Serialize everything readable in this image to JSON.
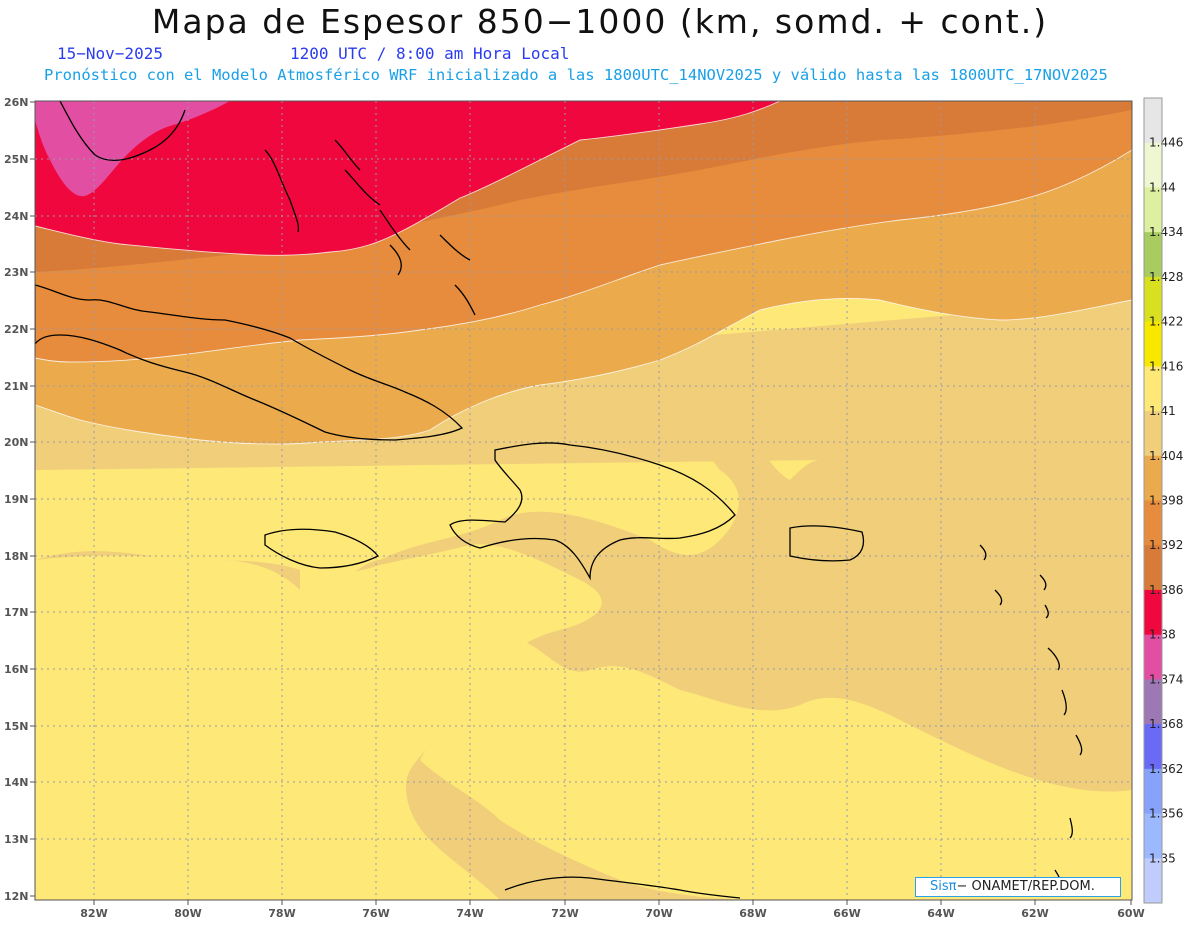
{
  "header": {
    "title": "Mapa de Espesor 850−1000 (km, somd. + cont.)",
    "date": "15−Nov−2025",
    "valid_time": "1200 UTC / 8:00 am Hora Local",
    "forecast_info": "Pronóstico con el Modelo Atmosférico WRF inicializado a las 1800UTC_14NOV2025 y válido hasta las  1800UTC_17NOV2025"
  },
  "axes": {
    "latitude_labels": [
      "26N",
      "25N",
      "24N",
      "23N",
      "22N",
      "21N",
      "20N",
      "19N",
      "18N",
      "17N",
      "16N",
      "15N",
      "14N",
      "13N",
      "12N"
    ],
    "longitude_labels": [
      "82W",
      "80W",
      "78W",
      "76W",
      "74W",
      "72W",
      "70W",
      "68W",
      "66W",
      "64W",
      "62W",
      "60W"
    ]
  },
  "colorbar": {
    "labels": [
      "1.446",
      "1.44",
      "1.434",
      "1.428",
      "1.422",
      "1.416",
      "1.41",
      "1.404",
      "1.398",
      "1.392",
      "1.386",
      "1.38",
      "1.374",
      "1.368",
      "1.362",
      "1.356",
      "1.35"
    ],
    "colors": [
      "#e6e6e6",
      "#eef6d2",
      "#dcf0a0",
      "#a8cc60",
      "#d8e020",
      "#f8e800",
      "#fee878",
      "#f0ce7a",
      "#ebaa4c",
      "#e68c3c",
      "#d87a38",
      "#f0073d",
      "#e24fa2",
      "#9c78b4",
      "#6a6af6",
      "#86a2fa",
      "#9cb8fe",
      "#c0ccfc"
    ]
  },
  "credit": {
    "sis": "Sisπ",
    "org": "− ONAMET/REP.DOM."
  }
}
